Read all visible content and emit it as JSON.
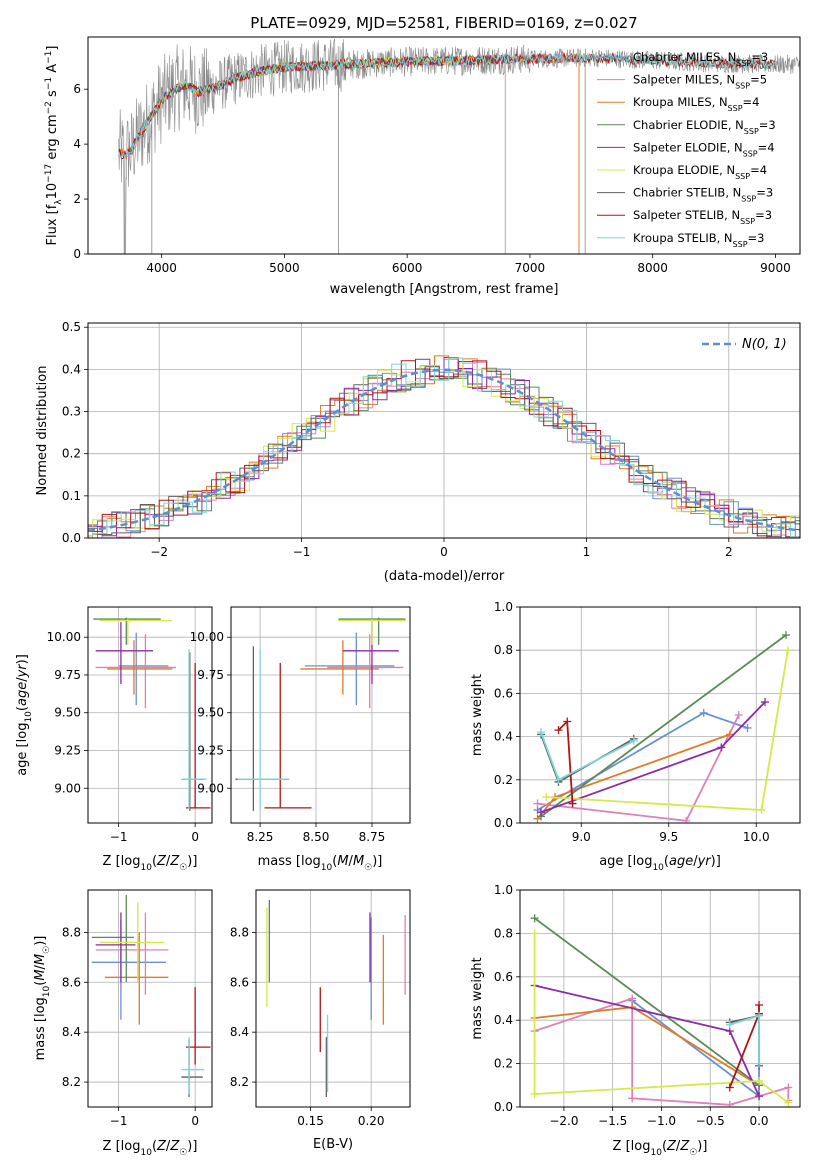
{
  "colors": {
    "chabrier_miles": "#6b8fd6",
    "salpeter_miles": "#e07fb9",
    "kroupa_miles": "#e07b28",
    "chabrier_elodie": "#5a8a5a",
    "salpeter_elodie": "#8e2aa8",
    "kroupa_elodie": "#d6e84a",
    "chabrier_stelib": "#606060",
    "salpeter_stelib": "#b01515",
    "kroupa_stelib": "#7fd6d6",
    "gaussian": "#5b8fd6"
  },
  "chart_data": [
    {
      "id": "spectrum",
      "type": "line",
      "title": "PLATE=0929, MJD=52581, FIBERID=0169, z=0.027",
      "xlabel": "wavelength [Angstrom, rest frame]",
      "ylabel": "Flux [fλ10⁻¹⁷ erg cm⁻² s⁻¹ A⁻¹]",
      "xlim": [
        3400,
        9200
      ],
      "ylim": [
        0,
        7.9
      ],
      "xticks": [
        "4000",
        "5000",
        "6000",
        "7000",
        "8000",
        "9000"
      ],
      "yticks": [
        "0",
        "2",
        "4",
        "6"
      ],
      "continuum": {
        "x": [
          3650,
          3700,
          3750,
          3800,
          3900,
          4000,
          4100,
          4200,
          4300,
          4400,
          4600,
          4800,
          5000,
          5200,
          5500,
          6000,
          6500,
          7000,
          7500,
          8000,
          8500,
          9000
        ],
        "y": [
          3.7,
          3.6,
          3.75,
          4.2,
          4.9,
          5.6,
          6.0,
          6.15,
          5.9,
          6.0,
          6.4,
          6.65,
          6.8,
          6.85,
          6.9,
          7.0,
          7.05,
          7.1,
          7.15,
          7.05,
          6.95,
          6.9
        ]
      },
      "legend": [
        {
          "label": "Chabrier MILES, N",
          "sub": "SSP",
          "suffix": "=3",
          "color": "#6b8fd6"
        },
        {
          "label": "Salpeter MILES, N",
          "sub": "SSP",
          "suffix": "=5",
          "color": "#e07fb9"
        },
        {
          "label": "Kroupa MILES, N",
          "sub": "SSP",
          "suffix": "=4",
          "color": "#e07b28"
        },
        {
          "label": "Chabrier ELODIE, N",
          "sub": "SSP",
          "suffix": "=3",
          "color": "#5a8a5a"
        },
        {
          "label": "Salpeter ELODIE, N",
          "sub": "SSP",
          "suffix": "=4",
          "color": "#8e2aa8"
        },
        {
          "label": "Kroupa ELODIE, N",
          "sub": "SSP",
          "suffix": "=4",
          "color": "#d6e84a"
        },
        {
          "label": "Chabrier STELIB, N",
          "sub": "SSP",
          "suffix": "=3",
          "color": "#606060"
        },
        {
          "label": "Salpeter STELIB, N",
          "sub": "SSP",
          "suffix": "=3",
          "color": "#b01515"
        },
        {
          "label": "Kroupa STELIB, N",
          "sub": "SSP",
          "suffix": "=3",
          "color": "#7fd6d6"
        }
      ]
    },
    {
      "id": "residuals",
      "type": "histogram",
      "xlabel": "(data-model)/error",
      "ylabel": "Normed distribution",
      "xlim": [
        -2.5,
        2.5
      ],
      "ylim": [
        0,
        0.51
      ],
      "xticks": [
        "−2",
        "−1",
        "0",
        "1",
        "2"
      ],
      "yticks": [
        "0.0",
        "0.1",
        "0.2",
        "0.3",
        "0.4",
        "0.5"
      ],
      "legend": "N(0, 1)"
    },
    {
      "id": "age_vs_Z",
      "type": "errorbar",
      "xlabel": "Z [log10(Z/Z☉)]",
      "ylabel": "age [log10(age/yr)]",
      "xlim": [
        -1.4,
        0.22
      ],
      "ylim": [
        8.77,
        10.2
      ],
      "xticks": [
        "−1",
        "0"
      ],
      "yticks": [
        "9.00",
        "9.25",
        "9.50",
        "9.75",
        "10.00"
      ],
      "points": [
        {
          "s": "chabrier_miles",
          "x": -0.77,
          "y": 9.81,
          "xe": [
            -1.0,
            -0.35
          ],
          "ye": [
            9.55,
            10.03
          ]
        },
        {
          "s": "salpeter_miles",
          "x": -0.65,
          "y": 9.8,
          "xe": [
            -1.3,
            -0.25
          ],
          "ye": [
            9.53,
            10.02
          ]
        },
        {
          "s": "kroupa_miles",
          "x": -0.8,
          "y": 9.79,
          "xe": [
            -1.15,
            -0.3
          ],
          "ye": [
            9.62,
            9.98
          ]
        },
        {
          "s": "chabrier_elodie",
          "x": -0.9,
          "y": 10.12,
          "xe": [
            -1.33,
            -0.45
          ],
          "ye": [
            9.95,
            10.13
          ]
        },
        {
          "s": "salpeter_elodie",
          "x": -0.97,
          "y": 9.91,
          "xe": [
            -1.3,
            -0.55
          ],
          "ye": [
            9.69,
            10.1
          ]
        },
        {
          "s": "kroupa_elodie",
          "x": -0.88,
          "y": 10.11,
          "xe": [
            -1.25,
            -0.3
          ],
          "ye": [
            9.95,
            10.12
          ]
        },
        {
          "s": "chabrier_stelib",
          "x": -0.07,
          "y": 9.06,
          "xe": [
            -0.18,
            0.12
          ],
          "ye": [
            8.85,
            9.9
          ]
        },
        {
          "s": "salpeter_stelib",
          "x": 0.0,
          "y": 8.87,
          "xe": [
            -0.12,
            0.2
          ],
          "ye": [
            8.87,
            9.83
          ]
        },
        {
          "s": "kroupa_stelib",
          "x": -0.08,
          "y": 9.06,
          "xe": [
            -0.18,
            0.15
          ],
          "ye": [
            8.86,
            9.92
          ]
        }
      ]
    },
    {
      "id": "age_vs_mass",
      "type": "errorbar",
      "xlabel": "mass [log10(M/M☉)]",
      "xlim": [
        8.12,
        8.92
      ],
      "ylim": [
        8.77,
        10.2
      ],
      "xticks": [
        "8.25",
        "8.50",
        "8.75"
      ],
      "yticks": [
        "9.00",
        "9.25",
        "9.50",
        "9.75",
        "10.00"
      ],
      "points": [
        {
          "s": "chabrier_miles",
          "x": 8.68,
          "y": 9.81,
          "xe": [
            8.45,
            8.85
          ],
          "ye": [
            9.55,
            10.03
          ]
        },
        {
          "s": "salpeter_miles",
          "x": 8.74,
          "y": 9.8,
          "xe": [
            8.55,
            8.89
          ],
          "ye": [
            9.53,
            10.02
          ]
        },
        {
          "s": "kroupa_miles",
          "x": 8.62,
          "y": 9.79,
          "xe": [
            8.43,
            8.78
          ],
          "ye": [
            9.62,
            9.98
          ]
        },
        {
          "s": "chabrier_elodie",
          "x": 8.78,
          "y": 10.12,
          "xe": [
            8.6,
            8.9
          ],
          "ye": [
            9.95,
            10.13
          ]
        },
        {
          "s": "salpeter_elodie",
          "x": 8.75,
          "y": 9.91,
          "xe": [
            8.62,
            8.87
          ],
          "ye": [
            9.69,
            10.1
          ]
        },
        {
          "s": "kroupa_elodie",
          "x": 8.75,
          "y": 10.11,
          "xe": [
            8.6,
            8.9
          ],
          "ye": [
            9.95,
            10.12
          ]
        },
        {
          "s": "chabrier_stelib",
          "x": 8.22,
          "y": 9.06,
          "xe": [
            8.14,
            8.38
          ],
          "ye": [
            8.85,
            9.94
          ]
        },
        {
          "s": "salpeter_stelib",
          "x": 8.34,
          "y": 8.87,
          "xe": [
            8.27,
            8.48
          ],
          "ye": [
            8.87,
            9.83
          ]
        },
        {
          "s": "kroupa_stelib",
          "x": 8.25,
          "y": 9.06,
          "xe": [
            8.15,
            8.38
          ],
          "ye": [
            8.86,
            9.92
          ]
        }
      ]
    },
    {
      "id": "weight_vs_age",
      "type": "line",
      "xlabel": "age [log10(age/yr)]",
      "ylabel": "mass weight",
      "xlim": [
        8.65,
        10.25
      ],
      "ylim": [
        0,
        1.0
      ],
      "xticks": [
        "9.0",
        "9.5",
        "10.0"
      ],
      "yticks": [
        "0.0",
        "0.2",
        "0.4",
        "0.6",
        "0.8",
        "1.0"
      ],
      "series": [
        {
          "s": "chabrier_miles",
          "x": [
            8.75,
            9.7,
            9.95
          ],
          "y": [
            0.06,
            0.51,
            0.44
          ]
        },
        {
          "s": "salpeter_miles",
          "x": [
            8.75,
            9.6,
            9.9
          ],
          "y": [
            0.09,
            0.01,
            0.5
          ]
        },
        {
          "s": "kroupa_miles",
          "x": [
            8.75,
            8.85,
            9.85
          ],
          "y": [
            0.02,
            0.12,
            0.41
          ]
        },
        {
          "s": "chabrier_elodie",
          "x": [
            8.77,
            10.17
          ],
          "y": [
            0.03,
            0.87
          ]
        },
        {
          "s": "salpeter_elodie",
          "x": [
            8.77,
            9.8,
            10.05
          ],
          "y": [
            0.05,
            0.35,
            0.56
          ]
        },
        {
          "s": "kroupa_elodie",
          "x": [
            8.8,
            10.03,
            10.18
          ],
          "y": [
            0.12,
            0.06,
            0.8
          ]
        },
        {
          "s": "chabrier_stelib",
          "x": [
            8.77,
            8.87,
            9.3
          ],
          "y": [
            0.41,
            0.19,
            0.39
          ]
        },
        {
          "s": "salpeter_stelib",
          "x": [
            8.87,
            8.92,
            8.95
          ],
          "y": [
            0.43,
            0.47,
            0.09
          ]
        },
        {
          "s": "kroupa_stelib",
          "x": [
            8.77,
            8.87,
            9.3
          ],
          "y": [
            0.42,
            0.2,
            0.38
          ]
        }
      ]
    },
    {
      "id": "mass_vs_Z",
      "type": "errorbar",
      "xlabel": "Z [log10(Z/Z☉)]",
      "ylabel": "mass [log10(M/M☉)]",
      "xlim": [
        -1.4,
        0.22
      ],
      "ylim": [
        8.1,
        8.97
      ],
      "xticks": [
        "−1",
        "0"
      ],
      "yticks": [
        "8.2",
        "8.4",
        "8.6",
        "8.8"
      ],
      "points": [
        {
          "s": "chabrier_miles",
          "x": -0.97,
          "y": 8.68,
          "xe": [
            -1.35,
            -0.38
          ],
          "ye": [
            8.45,
            8.85
          ]
        },
        {
          "s": "salpeter_miles",
          "x": -0.65,
          "y": 8.73,
          "xe": [
            -1.3,
            -0.35
          ],
          "ye": [
            8.55,
            8.88
          ]
        },
        {
          "s": "kroupa_miles",
          "x": -0.73,
          "y": 8.62,
          "xe": [
            -1.18,
            -0.35
          ],
          "ye": [
            8.43,
            8.8
          ]
        },
        {
          "s": "chabrier_elodie",
          "x": -0.9,
          "y": 8.78,
          "xe": [
            -1.35,
            -0.8
          ],
          "ye": [
            8.6,
            8.95
          ]
        },
        {
          "s": "salpeter_elodie",
          "x": -0.97,
          "y": 8.75,
          "xe": [
            -1.3,
            -0.78
          ],
          "ye": [
            8.6,
            8.88
          ]
        },
        {
          "s": "kroupa_elodie",
          "x": -0.75,
          "y": 8.76,
          "xe": [
            -1.25,
            -0.4
          ],
          "ye": [
            8.6,
            8.92
          ]
        },
        {
          "s": "chabrier_stelib",
          "x": -0.08,
          "y": 8.22,
          "xe": [
            -0.18,
            0.1
          ],
          "ye": [
            8.14,
            8.37
          ]
        },
        {
          "s": "salpeter_stelib",
          "x": 0.0,
          "y": 8.34,
          "xe": [
            -0.12,
            0.2
          ],
          "ye": [
            8.27,
            8.58
          ]
        },
        {
          "s": "kroupa_stelib",
          "x": -0.08,
          "y": 8.25,
          "xe": [
            -0.18,
            0.12
          ],
          "ye": [
            8.15,
            8.38
          ]
        }
      ]
    },
    {
      "id": "mass_vs_ebv",
      "type": "errorbar",
      "xlabel": "E(B-V)",
      "xlim": [
        0.105,
        0.232
      ],
      "ylim": [
        8.1,
        8.97
      ],
      "xticks": [
        "0.15",
        "0.20"
      ],
      "yticks": [
        "8.2",
        "8.4",
        "8.6",
        "8.8"
      ],
      "points": [
        {
          "s": "chabrier_miles",
          "x": 0.2,
          "y": 8.66,
          "ye": [
            8.45,
            8.86
          ]
        },
        {
          "s": "salpeter_miles",
          "x": 0.228,
          "y": 8.71,
          "ye": [
            8.55,
            8.87
          ]
        },
        {
          "s": "kroupa_miles",
          "x": 0.21,
          "y": 8.61,
          "ye": [
            8.43,
            8.79
          ]
        },
        {
          "s": "chabrier_elodie",
          "x": 0.116,
          "y": 8.78,
          "ye": [
            8.6,
            8.93
          ]
        },
        {
          "s": "salpeter_elodie",
          "x": 0.199,
          "y": 8.74,
          "ye": [
            8.6,
            8.88
          ]
        },
        {
          "s": "kroupa_elodie",
          "x": 0.114,
          "y": 8.7,
          "ye": [
            8.5,
            8.9
          ]
        },
        {
          "s": "chabrier_stelib",
          "x": 0.163,
          "y": 8.26,
          "ye": [
            8.14,
            8.38
          ]
        },
        {
          "s": "salpeter_stelib",
          "x": 0.158,
          "y": 8.45,
          "ye": [
            8.32,
            8.58
          ]
        },
        {
          "s": "kroupa_stelib",
          "x": 0.164,
          "y": 8.3,
          "ye": [
            8.16,
            8.47
          ]
        }
      ]
    },
    {
      "id": "weight_vs_Z",
      "type": "line",
      "xlabel": "Z [log10(Z/Z☉)]",
      "ylabel": "mass weight",
      "xlim": [
        -2.45,
        0.42
      ],
      "ylim": [
        0,
        1.0
      ],
      "xticks": [
        "−2.0",
        "−1.5",
        "−1.0",
        "−0.5",
        "0.0"
      ],
      "yticks": [
        "0.0",
        "0.2",
        "0.4",
        "0.6",
        "0.8",
        "1.0"
      ],
      "series": [
        {
          "s": "chabrier_miles",
          "x": [
            -1.3,
            0.0,
            0.0
          ],
          "y": [
            0.49,
            0.05,
            0.42
          ]
        },
        {
          "s": "salpeter_miles",
          "x": [
            -2.3,
            -1.3,
            -1.3,
            -0.3,
            0.3,
            0.3
          ],
          "y": [
            0.35,
            0.5,
            0.04,
            0.01,
            0.09,
            0.03
          ]
        },
        {
          "s": "kroupa_miles",
          "x": [
            -2.3,
            -1.3,
            0.0
          ],
          "y": [
            0.41,
            0.46,
            0.1
          ]
        },
        {
          "s": "chabrier_elodie",
          "x": [
            -2.3,
            0.0
          ],
          "y": [
            0.87,
            0.1
          ]
        },
        {
          "s": "salpeter_elodie",
          "x": [
            -2.3,
            -0.3,
            0.0
          ],
          "y": [
            0.56,
            0.35,
            0.05
          ]
        },
        {
          "s": "kroupa_elodie",
          "x": [
            -2.3,
            -2.3,
            0.0,
            0.3
          ],
          "y": [
            0.8,
            0.06,
            0.12,
            0.02
          ]
        },
        {
          "s": "chabrier_stelib",
          "x": [
            -0.3,
            0.0,
            0.0
          ],
          "y": [
            0.39,
            0.42,
            0.19
          ]
        },
        {
          "s": "salpeter_stelib",
          "x": [
            -0.3,
            0.0,
            0.0
          ],
          "y": [
            0.09,
            0.43,
            0.47
          ]
        },
        {
          "s": "kroupa_stelib",
          "x": [
            -0.3,
            0.0,
            0.0
          ],
          "y": [
            0.38,
            0.42,
            0.2
          ]
        }
      ]
    }
  ]
}
